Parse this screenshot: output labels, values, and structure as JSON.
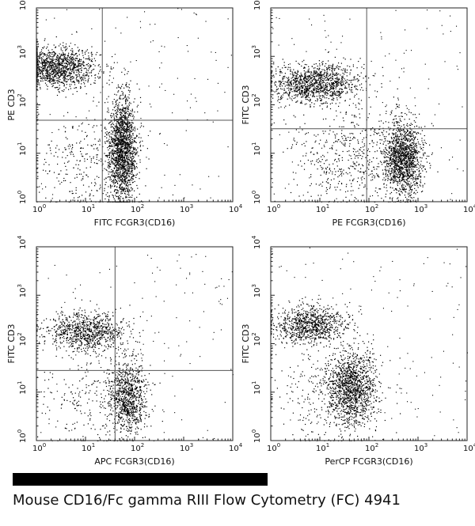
{
  "caption": "Mouse CD16/Fc gamma  RIII Flow Cytometry (FC) 4941",
  "colors": {
    "dots": "#000000",
    "gate": "#555555",
    "background": "#ffffff"
  },
  "chart_data": [
    {
      "type": "scatter",
      "xlabel": "FITC FCGR3(CD16)",
      "ylabel": "PE CD3",
      "xscale": "log",
      "yscale": "log",
      "xlim": [
        1,
        10000
      ],
      "ylim": [
        1,
        10000
      ],
      "ticks": [
        "10",
        "10",
        "10",
        "10",
        "10"
      ],
      "tick_exponents": [
        "0",
        "1",
        "2",
        "3",
        "4"
      ],
      "gate": {
        "x": 22,
        "y": 48
      },
      "populations": [
        {
          "center": [
            2.5,
            600
          ],
          "spread": [
            0.42,
            0.2
          ],
          "count": 1300
        },
        {
          "center": [
            55,
            12
          ],
          "spread": [
            0.15,
            0.55
          ],
          "count": 1800
        },
        {
          "center": [
            8,
            6
          ],
          "spread": [
            0.5,
            0.5
          ],
          "count": 250
        }
      ]
    },
    {
      "type": "scatter",
      "xlabel": "PE FCGR3(CD16)",
      "ylabel": "FITC CD3",
      "xscale": "log",
      "yscale": "log",
      "xlim": [
        1,
        10000
      ],
      "ylim": [
        1,
        10000
      ],
      "ticks": [
        "10",
        "10",
        "10",
        "10",
        "10"
      ],
      "tick_exponents": [
        "0",
        "1",
        "2",
        "3",
        "4"
      ],
      "gate": {
        "x": 90,
        "y": 32
      },
      "populations": [
        {
          "center": [
            8,
            280
          ],
          "spread": [
            0.45,
            0.2
          ],
          "count": 1200
        },
        {
          "center": [
            480,
            8
          ],
          "spread": [
            0.2,
            0.4
          ],
          "count": 1400
        },
        {
          "center": [
            40,
            8
          ],
          "spread": [
            0.6,
            0.5
          ],
          "count": 500
        }
      ]
    },
    {
      "type": "scatter",
      "xlabel": "APC FCGR3(CD16)",
      "ylabel": "FITC CD3",
      "xscale": "log",
      "yscale": "log",
      "xlim": [
        1,
        10000
      ],
      "ylim": [
        1,
        10000
      ],
      "ticks": [
        "10",
        "10",
        "10",
        "10",
        "10"
      ],
      "tick_exponents": [
        "0",
        "1",
        "2",
        "3",
        "4"
      ],
      "gate": {
        "x": 40,
        "y": 28
      },
      "populations": [
        {
          "center": [
            10,
            180
          ],
          "spread": [
            0.4,
            0.2
          ],
          "count": 900
        },
        {
          "center": [
            70,
            8
          ],
          "spread": [
            0.2,
            0.4
          ],
          "count": 900
        },
        {
          "center": [
            12,
            6
          ],
          "spread": [
            0.5,
            0.5
          ],
          "count": 200
        }
      ]
    },
    {
      "type": "scatter",
      "xlabel": "PerCP FCGR3(CD16)",
      "ylabel": "FITC CD3",
      "xscale": "log",
      "yscale": "log",
      "xlim": [
        1,
        10000
      ],
      "ylim": [
        1,
        10000
      ],
      "ticks": [
        "10",
        "10",
        "10",
        "10",
        "10"
      ],
      "tick_exponents": [
        "0",
        "1",
        "2",
        "3",
        "4"
      ],
      "gate": null,
      "populations": [
        {
          "center": [
            6,
            250
          ],
          "spread": [
            0.4,
            0.2
          ],
          "count": 900
        },
        {
          "center": [
            45,
            12
          ],
          "spread": [
            0.25,
            0.4
          ],
          "count": 1300
        },
        {
          "center": [
            15,
            8
          ],
          "spread": [
            0.5,
            0.5
          ],
          "count": 250
        }
      ]
    }
  ]
}
